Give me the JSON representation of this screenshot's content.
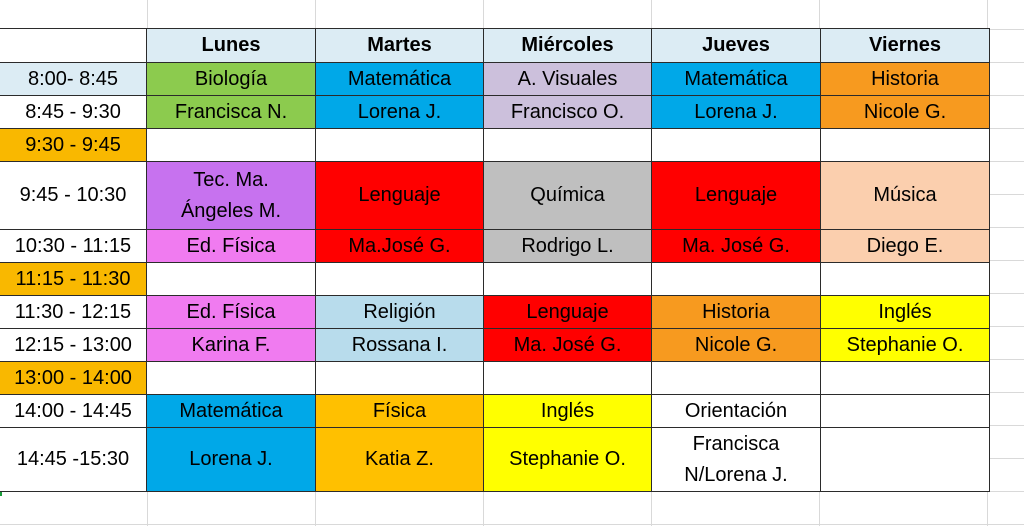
{
  "colors": {
    "header_bg": "#dcecf4",
    "time_bg": "#dcecf4",
    "break_bg": "#f9b800",
    "green": "#8ccb4e",
    "blue": "#00a8e8",
    "lilac": "#ccc0dc",
    "orange": "#f79a1f",
    "purple": "#c772ef",
    "red": "#ff0000",
    "gray": "#bfbfbf",
    "peach": "#fbcfae",
    "pink": "#f07bf0",
    "lightblue": "#b8dcec",
    "yellow": "#ffff00",
    "amber": "#ffc000",
    "white": "#ffffff"
  },
  "schedule": {
    "days": [
      "Lunes",
      "Martes",
      "Miércoles",
      "Jueves",
      "Viernes"
    ],
    "times": [
      "8:00- 8:45",
      "8:45 - 9:30",
      "9:30 - 9:45",
      "9:45 - 10:30",
      "10:30 - 11:15",
      "11:15 - 11:30",
      "11:30 - 12:15",
      "12:15 - 13:00",
      "13:00 - 14:00",
      "14:00 - 14:45",
      "14:45 -15:30"
    ],
    "rows": [
      [
        {
          "text": "Biología",
          "color": "green"
        },
        {
          "text": "Matemática",
          "color": "blue"
        },
        {
          "text": "A. Visuales",
          "color": "lilac"
        },
        {
          "text": "Matemática",
          "color": "blue"
        },
        {
          "text": "Historia",
          "color": "orange"
        }
      ],
      [
        {
          "text": "Francisca N.",
          "color": "green"
        },
        {
          "text": "Lorena J.",
          "color": "blue"
        },
        {
          "text": "Francisco O.",
          "color": "lilac"
        },
        {
          "text": "Lorena J.",
          "color": "blue"
        },
        {
          "text": "Nicole G.",
          "color": "orange"
        }
      ],
      [
        {
          "text": "",
          "color": "white"
        },
        {
          "text": "",
          "color": "white"
        },
        {
          "text": "",
          "color": "white"
        },
        {
          "text": "",
          "color": "white"
        },
        {
          "text": "",
          "color": "white"
        }
      ],
      [
        {
          "text": "Tec. Ma. Ángeles M.",
          "lines": [
            "Tec. Ma.",
            "Ángeles M."
          ],
          "color": "purple"
        },
        {
          "text": "Lenguaje",
          "color": "red"
        },
        {
          "text": "Química",
          "color": "gray"
        },
        {
          "text": "Lenguaje",
          "color": "red"
        },
        {
          "text": "Música",
          "color": "peach"
        }
      ],
      [
        {
          "text": "Ed. Física",
          "color": "pink"
        },
        {
          "text": "Ma.José G.",
          "color": "red"
        },
        {
          "text": "Rodrigo L.",
          "color": "gray"
        },
        {
          "text": "Ma. José G.",
          "color": "red"
        },
        {
          "text": "Diego E.",
          "color": "peach"
        }
      ],
      [
        {
          "text": "",
          "color": "white"
        },
        {
          "text": "",
          "color": "white"
        },
        {
          "text": "",
          "color": "white"
        },
        {
          "text": "",
          "color": "white"
        },
        {
          "text": "",
          "color": "white"
        }
      ],
      [
        {
          "text": "Ed. Física",
          "color": "pink"
        },
        {
          "text": "Religión",
          "color": "lightblue"
        },
        {
          "text": "Lenguaje",
          "color": "red"
        },
        {
          "text": "Historia",
          "color": "orange"
        },
        {
          "text": "Inglés",
          "color": "yellow"
        }
      ],
      [
        {
          "text": "Karina F.",
          "color": "pink"
        },
        {
          "text": "Rossana I.",
          "color": "lightblue"
        },
        {
          "text": "Ma. José G.",
          "color": "red"
        },
        {
          "text": "Nicole G.",
          "color": "orange"
        },
        {
          "text": "Stephanie O.",
          "color": "yellow"
        }
      ],
      [
        {
          "text": "",
          "color": "white"
        },
        {
          "text": "",
          "color": "white"
        },
        {
          "text": "",
          "color": "white"
        },
        {
          "text": "",
          "color": "white"
        },
        {
          "text": "",
          "color": "white"
        }
      ],
      [
        {
          "text": "Matemática",
          "color": "blue"
        },
        {
          "text": "Física",
          "color": "amber"
        },
        {
          "text": "Inglés",
          "color": "yellow"
        },
        {
          "text": "Orientación",
          "color": "white"
        },
        {
          "text": "",
          "color": "white"
        }
      ],
      [
        {
          "text": "Lorena J.",
          "color": "blue"
        },
        {
          "text": "Katia Z.",
          "color": "amber"
        },
        {
          "text": "Stephanie O.",
          "color": "yellow"
        },
        {
          "text": "Francisca N/Lorena J.",
          "lines": [
            "Francisca",
            "N/Lorena J."
          ],
          "color": "white"
        },
        {
          "text": "",
          "color": "white"
        }
      ]
    ]
  }
}
